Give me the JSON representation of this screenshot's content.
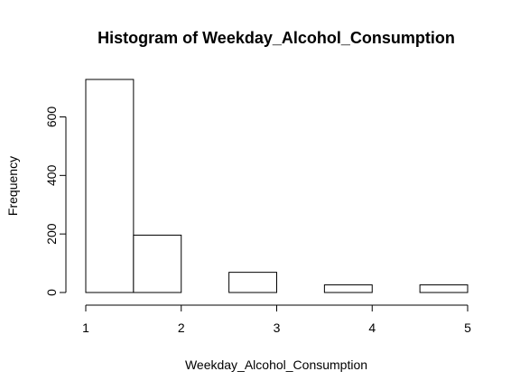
{
  "chart_data": {
    "type": "bar",
    "title": "Histogram of Weekday_Alcohol_Consumption",
    "xlabel": "Weekday_Alcohol_Consumption",
    "ylabel": "Frequency",
    "bins": [
      {
        "x0": 1.0,
        "x1": 1.5,
        "count": 728
      },
      {
        "x0": 1.5,
        "x1": 2.0,
        "count": 196
      },
      {
        "x0": 2.0,
        "x1": 2.5,
        "count": 0
      },
      {
        "x0": 2.5,
        "x1": 3.0,
        "count": 69
      },
      {
        "x0": 3.0,
        "x1": 3.5,
        "count": 0
      },
      {
        "x0": 3.5,
        "x1": 4.0,
        "count": 26
      },
      {
        "x0": 4.0,
        "x1": 4.5,
        "count": 0
      },
      {
        "x0": 4.5,
        "x1": 5.0,
        "count": 26
      }
    ],
    "xlim": [
      1,
      5
    ],
    "ylim": [
      0,
      728
    ],
    "xticks": [
      1,
      2,
      3,
      4,
      5
    ],
    "yticks": [
      0,
      200,
      400,
      600
    ],
    "grid": false,
    "legend": "none"
  }
}
